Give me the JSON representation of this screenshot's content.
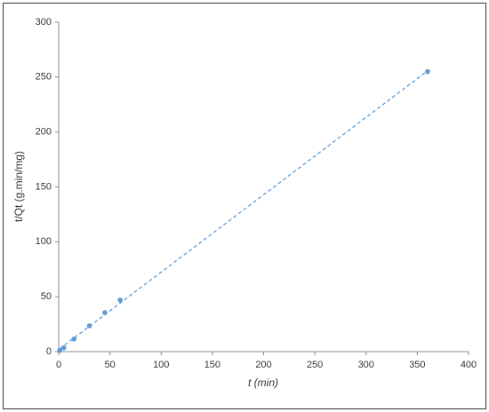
{
  "chart_data": {
    "type": "scatter",
    "xlabel": "t (min)",
    "ylabel": "t/Qt (g.min/mg)",
    "series": [
      {
        "color": "#5b9bd5",
        "x": [
          1,
          5,
          15,
          30,
          45,
          60,
          360
        ],
        "values": [
          1,
          3.5,
          11.5,
          23.5,
          35.5,
          47,
          255
        ]
      }
    ],
    "trendline": "linear",
    "trendline_style": "dashed",
    "xlim": [
      0,
      400
    ],
    "xticks": [
      0,
      50,
      100,
      150,
      200,
      250,
      300,
      350,
      400
    ],
    "ylim": [
      0,
      300
    ],
    "yticks": [
      0,
      50,
      100,
      150,
      200,
      250,
      300
    ],
    "grid": false
  }
}
